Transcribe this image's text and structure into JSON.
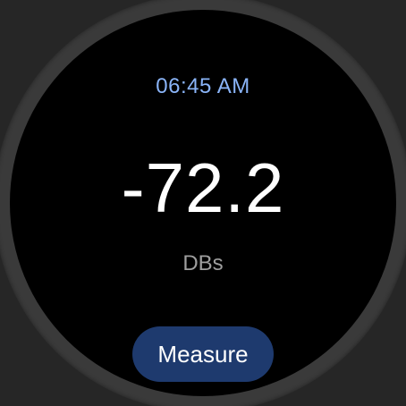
{
  "status": {
    "time": "06:45 AM"
  },
  "meter": {
    "value": "-72.2",
    "unit": "DBs"
  },
  "actions": {
    "measure_label": "Measure"
  },
  "colors": {
    "background": "#262626",
    "bezel": "#3a3a3a",
    "screen": "#000000",
    "time": "#8ab4f8",
    "reading": "#ffffff",
    "unit": "#9e9e9e",
    "button": "#1e3a6e"
  }
}
